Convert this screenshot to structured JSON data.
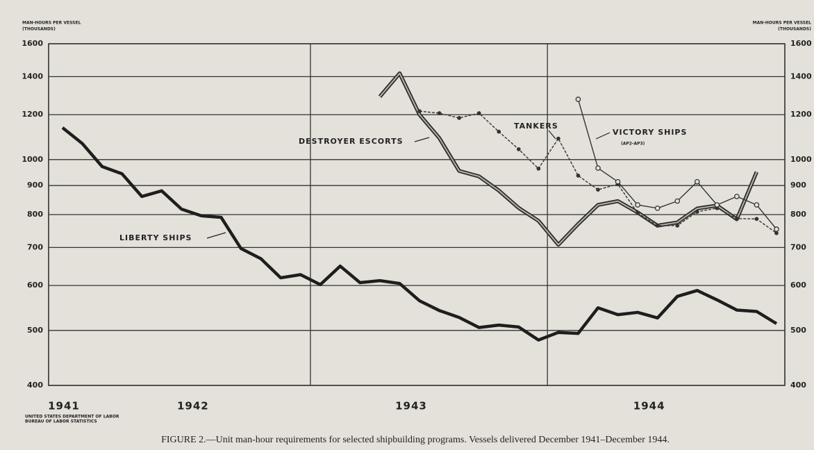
{
  "chart_data": {
    "type": "line",
    "ylabel": "MAN-HOURS PER VESSEL",
    "yunit": "(THOUSANDS)",
    "log_scale": true,
    "grid": true,
    "ylim": [
      400,
      1600
    ],
    "yticks": [
      400,
      500,
      600,
      700,
      800,
      900,
      1000,
      1200,
      1400,
      1600
    ],
    "categories": [
      "1941",
      null,
      null,
      null,
      null,
      null,
      null,
      "1942",
      null,
      null,
      null,
      null,
      null,
      null,
      null,
      null,
      null,
      null,
      "1943",
      null,
      null,
      null,
      null,
      null,
      null,
      null,
      null,
      null,
      null,
      null,
      "1944",
      null,
      null,
      null,
      null,
      null,
      null
    ],
    "series": [
      {
        "name": "LIBERTY SHIPS",
        "color": "#1e1e1e",
        "line_style": "thick",
        "marker": "none",
        "values": [
          1138,
          1067,
          972,
          944,
          861,
          881,
          818,
          796,
          791,
          697,
          669,
          619,
          627,
          602,
          649,
          607,
          612,
          605,
          564,
          542,
          527,
          506,
          511,
          507,
          481,
          496,
          494,
          548,
          533,
          538,
          526,
          574,
          588,
          566,
          543,
          540,
          514
        ]
      },
      {
        "name": "DESTROYER ESCORTS",
        "color": "#2a2a2a",
        "line_style": "double",
        "marker": "none",
        "values": [
          null,
          null,
          null,
          null,
          null,
          null,
          null,
          null,
          null,
          null,
          null,
          null,
          null,
          null,
          null,
          null,
          1291,
          1419,
          1200,
          1091,
          955,
          934,
          882,
          822,
          780,
          708,
          770,
          832,
          845,
          807,
          765,
          775,
          820,
          830,
          785,
          951,
          null
        ]
      },
      {
        "name": "TANKERS",
        "color": "#333333",
        "line_style": "thin",
        "marker": "dot",
        "values": [
          null,
          null,
          null,
          null,
          null,
          null,
          null,
          null,
          null,
          null,
          null,
          null,
          null,
          null,
          null,
          null,
          null,
          null,
          1217,
          1207,
          1184,
          1207,
          1120,
          1043,
          964,
          1089,
          937,
          885,
          905,
          805,
          765,
          765,
          809,
          821,
          787,
          786,
          742
        ]
      },
      {
        "name": "VICTORY SHIPS",
        "note": "(AP2-AP3)",
        "color": "#333333",
        "line_style": "thin",
        "marker": "circle",
        "values": [
          null,
          null,
          null,
          null,
          null,
          null,
          null,
          null,
          null,
          null,
          null,
          null,
          null,
          null,
          null,
          null,
          null,
          null,
          null,
          null,
          null,
          null,
          null,
          null,
          null,
          null,
          1277,
          966,
          914,
          832,
          821,
          845,
          914,
          832,
          861,
          832,
          754
        ]
      }
    ],
    "source": [
      "UNITED STATES DEPARTMENT OF LABOR",
      "BUREAU OF LABOR STATISTICS"
    ],
    "caption": "FIGURE 2.—Unit man-hour requirements for selected shipbuilding programs. Vessels delivered December 1941–December 1944."
  }
}
